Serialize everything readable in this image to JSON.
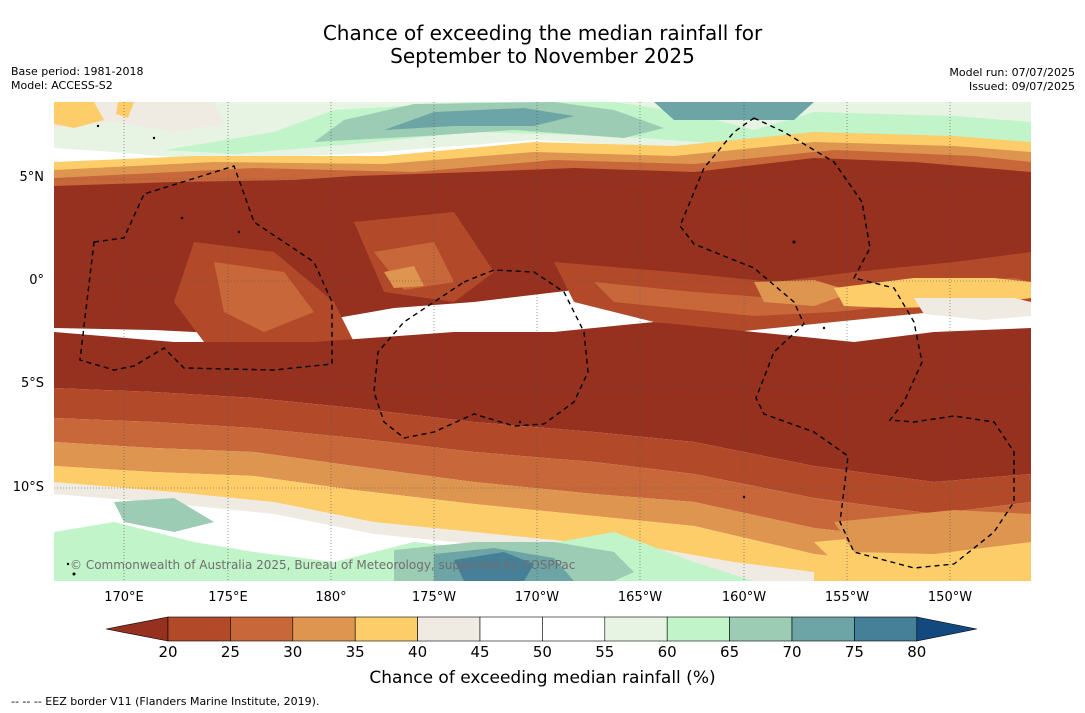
{
  "title": {
    "line1": "Chance of exceeding the median rainfall for",
    "line2": "September to November 2025"
  },
  "meta_left": {
    "base_period": "Base period: 1981-2018",
    "model": "Model: ACCESS-S2"
  },
  "meta_right": {
    "model_run": "Model run: 07/07/2025",
    "issued": "Issued: 09/07/2025"
  },
  "map": {
    "lat_labels": [
      "5°N",
      "0°",
      "5°S",
      "10°S"
    ],
    "lon_labels": [
      "170°E",
      "175°E",
      "180°",
      "175°W",
      "170°W",
      "165°W",
      "160°W",
      "155°W",
      "150°W"
    ],
    "copyright": "© Commonwealth of Australia 2025, Bureau of Meteorology, supported by COSPPac",
    "overlay": "EEZ borders (dashed)",
    "dominant_field": "below-median probability band along the equator"
  },
  "legend": {
    "title": "Chance of exceeding median rainfall (%)",
    "ticks": [
      "20",
      "25",
      "30",
      "35",
      "40",
      "45",
      "50",
      "55",
      "60",
      "65",
      "70",
      "75",
      "80"
    ],
    "colors": [
      "#96301f",
      "#b24a2a",
      "#c8683a",
      "#dd9550",
      "#fdcd6a",
      "#efebe3",
      "#ffffff",
      "#ffffff",
      "#e7f4e4",
      "#c1f4c9",
      "#9dccb4",
      "#6da4a6",
      "#467f98",
      "#14497f"
    ]
  },
  "footnote": "-- -- -- EEZ border V11 (Flanders Marine Institute, 2019)."
}
